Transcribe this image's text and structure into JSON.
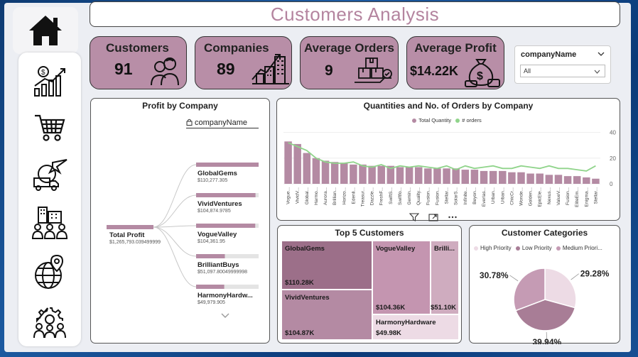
{
  "header": {
    "title": "Customers Analysis"
  },
  "nav": {
    "items": [
      "home-icon",
      "finance-icon",
      "cart-icon",
      "shipping-icon",
      "company-people-icon",
      "globe-icon",
      "team-gear-icon"
    ]
  },
  "kpis": [
    {
      "label": "Customers",
      "value": "91",
      "icon": "people-icon"
    },
    {
      "label": "Companies",
      "value": "89",
      "icon": "growth-buildings-icon"
    },
    {
      "label": "Average Orders",
      "value": "9",
      "icon": "boxes-icon"
    },
    {
      "label": "Average Profit",
      "value": "$14.22K",
      "icon": "money-bag-icon"
    }
  ],
  "slicer": {
    "title": "companyName",
    "value": "All"
  },
  "colors": {
    "accent": "#b88ea7",
    "bar": "#b48aa3",
    "line": "#90d48b",
    "title": "#b4849f",
    "high": "#eddbe5",
    "low": "#a87d96",
    "medium": "#c59bb4"
  },
  "profit_panel": {
    "title": "Profit by Company",
    "field": "companyName",
    "root": {
      "label": "Total Profit",
      "value": "$1,265,793.039499999"
    },
    "nodes": [
      {
        "label": "GlobalGems",
        "value": "$110,277.305",
        "share": 1.0
      },
      {
        "label": "VividVentures",
        "value": "$104,874.9785",
        "share": 0.95
      },
      {
        "label": "VogueValley",
        "value": "$104,361.95",
        "share": 0.946
      },
      {
        "label": "BrilliantBuys",
        "value": "$51,097.80049999998",
        "share": 0.46
      },
      {
        "label": "HarmonyHardw...",
        "value": "$49,979.905",
        "share": 0.45
      }
    ]
  },
  "chart_data": [
    {
      "type": "bar",
      "title": "Quantities and No. of Orders by Company",
      "legend": [
        "Total Quantity",
        "# orders"
      ],
      "legend_position": "top-center",
      "categories": [
        "Vogue...",
        "VividV...",
        "Global...",
        "Harmo...",
        "Aurora...",
        "Brillian...",
        "Horizo...",
        "Edenli...",
        "Treasur...",
        "Dazzle...",
        "FreshF...",
        "SwiftS...",
        "Swiftfo...",
        "Gemin...",
        "Quality...",
        "Fusion...",
        "Fusion...",
        "Stellar...",
        "SolarS...",
        "Infinite...",
        "Beyon...",
        "Everlas...",
        "Urban...",
        "Urban...",
        "ChicCr...",
        "Wonde...",
        "Golden...",
        "EpicEle...",
        "Nexus...",
        "ValueV...",
        "Fusion...",
        "EliteEm...",
        "Enigma...",
        "Stellar..."
      ],
      "series": [
        {
          "name": "Total Quantity",
          "type": "bar",
          "values": [
            33,
            31,
            24,
            20,
            18,
            17,
            16,
            15,
            15,
            14,
            14,
            14,
            13,
            13,
            13,
            12,
            12,
            12,
            12,
            11,
            11,
            10,
            10,
            10,
            9,
            9,
            8,
            8,
            7,
            7,
            6,
            6,
            5,
            4
          ]
        },
        {
          "name": "# orders",
          "type": "line",
          "values": [
            32,
            29,
            26,
            20,
            17,
            16,
            16,
            17,
            14,
            13,
            15,
            12,
            14,
            13,
            14,
            13,
            12,
            14,
            11,
            14,
            12,
            13,
            14,
            12,
            12,
            14,
            13,
            12,
            14,
            12,
            12,
            11,
            10,
            14
          ]
        }
      ],
      "yticks": [
        0,
        20,
        40
      ],
      "ylim": [
        0,
        42
      ],
      "yaxis_position": "right"
    },
    {
      "type": "treemap",
      "title": "Top 5 Customers",
      "items": [
        {
          "name": "GlobalGems",
          "value": 110.28,
          "label": "$110.28K"
        },
        {
          "name": "VividVentures",
          "value": 104.87,
          "label": "$104.87K"
        },
        {
          "name": "VogueValley",
          "value": 104.36,
          "label": "$104.36K"
        },
        {
          "name": "Brilli...",
          "value": 51.1,
          "label": "$51.10K"
        },
        {
          "name": "HarmonyHardware",
          "value": 49.98,
          "label": "$49.98K"
        }
      ]
    },
    {
      "type": "pie",
      "title": "Customer Categories",
      "legend": [
        "High Priority",
        "Low Priority",
        "Medium Priori..."
      ],
      "legend_position": "top",
      "slices": [
        {
          "name": "High Priority",
          "value": 29.28,
          "label": "29.28%"
        },
        {
          "name": "Low Priority",
          "value": 39.94,
          "label": "39.94%"
        },
        {
          "name": "Medium Priority",
          "value": 30.78,
          "label": "30.78%"
        }
      ]
    }
  ]
}
